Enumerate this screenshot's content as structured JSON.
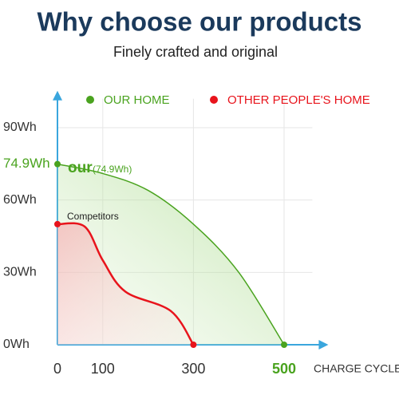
{
  "chart_data": {
    "type": "line",
    "title": "Why choose our products",
    "subtitle": "Finely crafted and original",
    "x_label": "CHARGE CYCLES",
    "annotations": [
      "our",
      "(74.9Wh)",
      "Competitors"
    ],
    "series": [
      {
        "name": "OUR HOME",
        "color": "#4aa31f",
        "x": [
          0,
          100,
          200,
          300,
          400,
          500
        ],
        "values": [
          74.9,
          71,
          64,
          50,
          30,
          0
        ]
      },
      {
        "name": "OTHER PEOPLE'S HOME",
        "color": "#e8141c",
        "x": [
          0,
          60,
          100,
          150,
          250,
          300
        ],
        "values": [
          50,
          49,
          35,
          22,
          14,
          0
        ]
      }
    ],
    "xlim": [
      0,
      580
    ],
    "xticks": [
      0,
      100,
      300,
      500
    ],
    "ylim": [
      0,
      102
    ],
    "yticks": [
      {
        "value": 0,
        "label": "0Wh"
      },
      {
        "value": 30,
        "label": "30Wh"
      },
      {
        "value": 60,
        "label": "60Wh"
      },
      {
        "value": 74.9,
        "label": "74.9Wh"
      },
      {
        "value": 90,
        "label": "90Wh"
      }
    ],
    "grid": true,
    "legend": "top"
  }
}
